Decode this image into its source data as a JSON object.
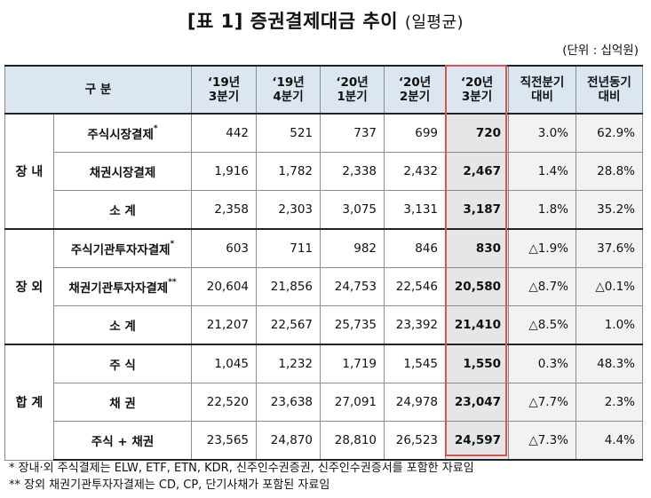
{
  "title": {
    "main": "[표 1] 증권결제대금 추이",
    "sub": "(일평균)"
  },
  "unit": "(단위 : 십억원)",
  "headers": {
    "category": "구  분",
    "cols": [
      {
        "line1": "‘19년",
        "line2": "3분기"
      },
      {
        "line1": "‘19년",
        "line2": "4분기"
      },
      {
        "line1": "‘20년",
        "line2": "1분기"
      },
      {
        "line1": "‘20년",
        "line2": "2분기"
      },
      {
        "line1": "‘20년",
        "line2": "3분기"
      },
      {
        "line1": "직전분기",
        "line2": "대비"
      },
      {
        "line1": "전년동기",
        "line2": "대비"
      }
    ]
  },
  "groups": [
    {
      "name": "장 내",
      "rows": [
        {
          "label": "주식시장결제",
          "mark": "*",
          "values": [
            "442",
            "521",
            "737",
            "699",
            "720"
          ],
          "qoq": "3.0%",
          "yoy": "62.9%"
        },
        {
          "label": "채권시장결제",
          "mark": "",
          "values": [
            "1,916",
            "1,782",
            "2,338",
            "2,432",
            "2,467"
          ],
          "qoq": "1.4%",
          "yoy": "28.8%"
        },
        {
          "label": "소  계",
          "mark": "",
          "values": [
            "2,358",
            "2,303",
            "3,075",
            "3,131",
            "3,187"
          ],
          "qoq": "1.8%",
          "yoy": "35.2%"
        }
      ]
    },
    {
      "name": "장 외",
      "rows": [
        {
          "label": "주식기관투자자결제",
          "mark": "*",
          "values": [
            "603",
            "711",
            "982",
            "846",
            "830"
          ],
          "qoq": "△1.9%",
          "yoy": "37.6%"
        },
        {
          "label": "채권기관투자자결제",
          "mark": "**",
          "values": [
            "20,604",
            "21,856",
            "24,753",
            "22,546",
            "20,580"
          ],
          "qoq": "△8.7%",
          "yoy": "△0.1%"
        },
        {
          "label": "소  계",
          "mark": "",
          "values": [
            "21,207",
            "22,567",
            "25,735",
            "23,392",
            "21,410"
          ],
          "qoq": "△8.5%",
          "yoy": "1.0%"
        }
      ]
    },
    {
      "name": "합 계",
      "rows": [
        {
          "label": "주  식",
          "mark": "",
          "values": [
            "1,045",
            "1,232",
            "1,719",
            "1,545",
            "1,550"
          ],
          "qoq": "0.3%",
          "yoy": "48.3%"
        },
        {
          "label": "채  권",
          "mark": "",
          "values": [
            "22,520",
            "23,638",
            "27,091",
            "24,978",
            "23,047"
          ],
          "qoq": "△7.7%",
          "yoy": "2.3%"
        },
        {
          "label": "주식 + 채권",
          "mark": "",
          "values": [
            "23,565",
            "24,870",
            "28,810",
            "26,523",
            "24,597"
          ],
          "qoq": "△7.3%",
          "yoy": "4.4%"
        }
      ]
    }
  ],
  "notes": [
    "*  장내·외 주식결제는 ELW, ETF, ETN, KDR, 신주인수권증권, 신주인수권증서를 포함한 자료임",
    "** 장외 채권기관투자자결제는 CD, CP, 단기사채가 포함된 자료임"
  ]
}
